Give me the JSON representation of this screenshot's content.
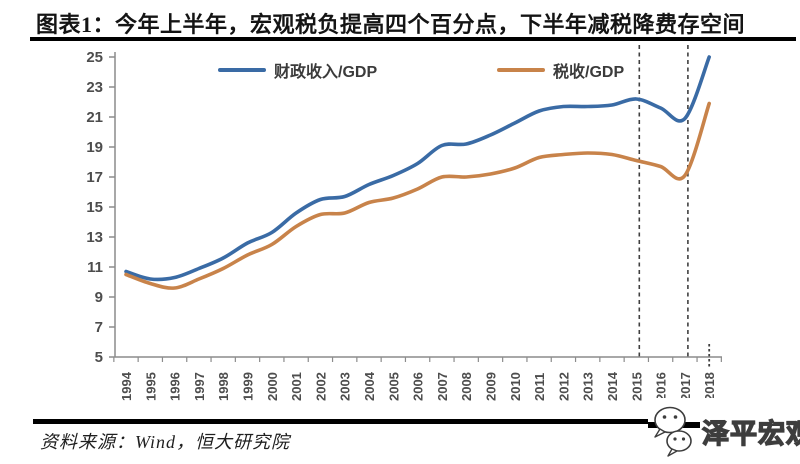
{
  "header": {
    "title": "图表1：今年上半年，宏观税负提高四个百分点，下半年减税降费存空间"
  },
  "footer": {
    "source": "资料来源：Wind，恒大研究院"
  },
  "watermark": {
    "label": "泽平宏观",
    "icon": "wechat-chat-bubbles-icon"
  },
  "colors": {
    "fiscal_line": "#3A6BA5",
    "tax_line": "#C8834A",
    "dashed_line": "#3f3f3f",
    "axis": "#8c8c8c",
    "tick_label": "#4d4d4d",
    "rule": "#000000"
  },
  "chart_data": {
    "type": "line",
    "title": "图表1：今年上半年，宏观税负提高四个百分点，下半年减税降费存空间",
    "x_categories": [
      "1994",
      "1995",
      "1996",
      "1997",
      "1998",
      "1999",
      "2000",
      "2001",
      "2002",
      "2003",
      "2004",
      "2005",
      "2006",
      "2007",
      "2008",
      "2009",
      "2010",
      "2011",
      "2012",
      "2013",
      "2014",
      "2015",
      "2016",
      "2017",
      "2018"
    ],
    "series": [
      {
        "name": "财政收入/GDP",
        "color": "#3A6BA5",
        "values": [
          10.7,
          10.2,
          10.3,
          10.9,
          11.6,
          12.6,
          13.3,
          14.6,
          15.5,
          15.7,
          16.5,
          17.1,
          17.9,
          19.1,
          19.2,
          19.8,
          20.6,
          21.4,
          21.7,
          21.7,
          21.8,
          22.2,
          21.6,
          20.9,
          25.0
        ]
      },
      {
        "name": "税收/GDP",
        "color": "#C8834A",
        "values": [
          10.5,
          9.9,
          9.6,
          10.2,
          10.9,
          11.8,
          12.5,
          13.7,
          14.5,
          14.6,
          15.3,
          15.6,
          16.2,
          17.0,
          17.0,
          17.2,
          17.6,
          18.3,
          18.5,
          18.6,
          18.5,
          18.1,
          17.7,
          17.1,
          21.9
        ]
      }
    ],
    "ylim": [
      5,
      25
    ],
    "ytick_step": 2,
    "grid": false,
    "legend_position": "top-inside",
    "annotations": {
      "dashed_vlines": [
        "2015",
        "2017"
      ],
      "dashed_stub": "2018"
    }
  }
}
